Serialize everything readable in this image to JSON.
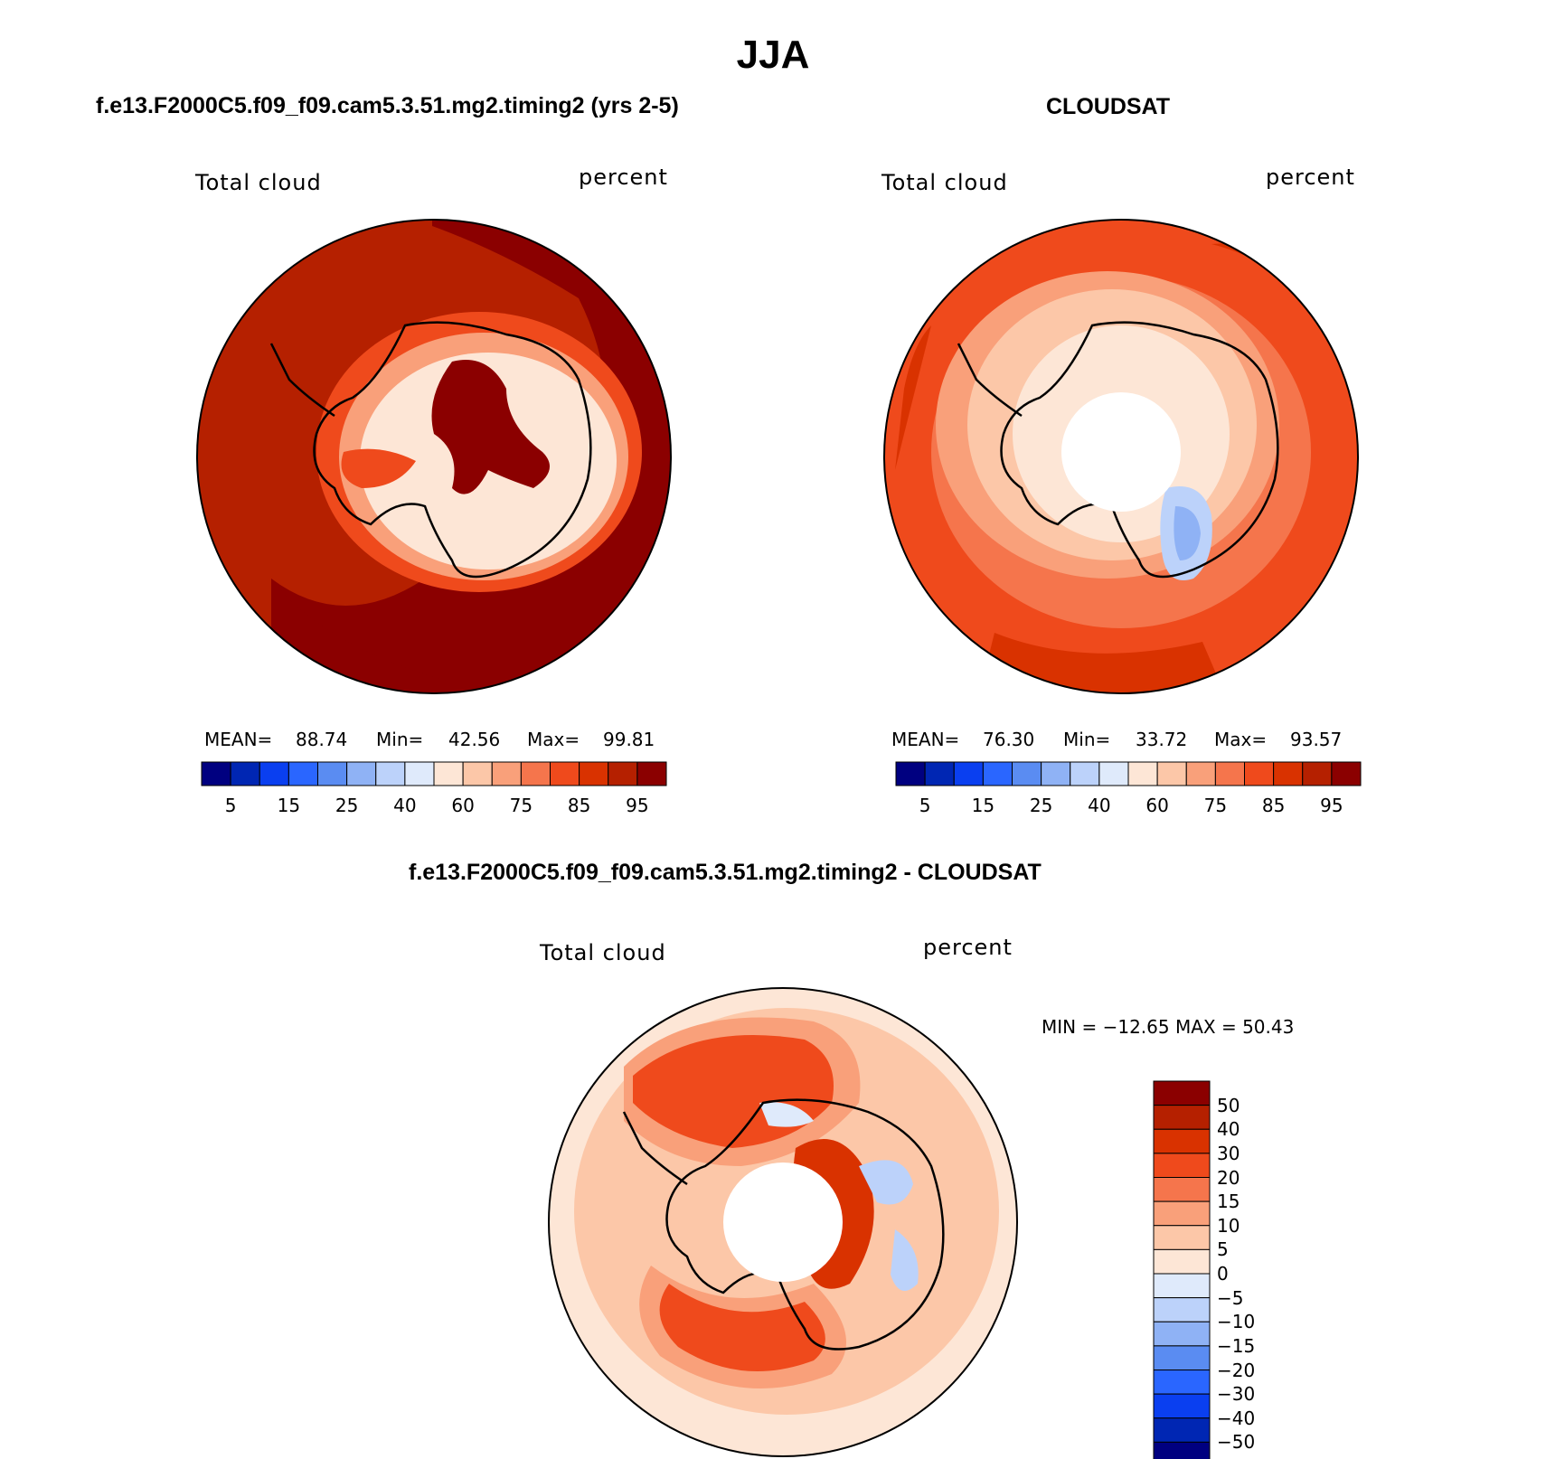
{
  "title": "JJA",
  "panels": [
    {
      "title": "f.e13.F2000C5.f09_f09.cam5.3.51.mg2.timing2 (yrs 2-5)",
      "left_label": "Total cloud",
      "right_label": "percent",
      "stats": {
        "mean_label": "MEAN=",
        "mean": "88.74",
        "min_label": "Min=",
        "min": "42.56",
        "max_label": "Max=",
        "max": "99.81"
      }
    },
    {
      "title": "CLOUDSAT",
      "left_label": "Total cloud",
      "right_label": "percent",
      "stats": {
        "mean_label": "MEAN=",
        "mean": "76.30",
        "min_label": "Min=",
        "min": "33.72",
        "max_label": "Max=",
        "max": "93.57"
      }
    },
    {
      "title": "f.e13.F2000C5.f09_f09.cam5.3.51.mg2.timing2 - CLOUDSAT",
      "left_label": "Total cloud",
      "right_label": "percent",
      "minmax_text": "MIN = −12.65 MAX =  50.43"
    }
  ],
  "chart_data": [
    {
      "type": "heatmap",
      "projection": "south-polar-stereographic",
      "variable": "Total cloud",
      "units": "percent",
      "season": "JJA",
      "stats": {
        "mean": 88.74,
        "min": 42.56,
        "max": 99.81
      },
      "colorbar": {
        "orientation": "horizontal",
        "tick_labels": [
          "5",
          "15",
          "25",
          "40",
          "60",
          "75",
          "85",
          "95"
        ],
        "colors": [
          "#000080",
          "#0026b3",
          "#0a3ff0",
          "#2a66ff",
          "#5a8cf2",
          "#8fb2f5",
          "#bcd2fa",
          "#dfeafb",
          "#fde6d6",
          "#fcc7a8",
          "#f9a07a",
          "#f5754c",
          "#ef4a1c",
          "#d93200",
          "#b52000",
          "#8b0000"
        ]
      }
    },
    {
      "type": "heatmap",
      "projection": "south-polar-stereographic",
      "variable": "Total cloud",
      "units": "percent",
      "season": "JJA",
      "stats": {
        "mean": 76.3,
        "min": 33.72,
        "max": 93.57
      },
      "colorbar": {
        "orientation": "horizontal",
        "tick_labels": [
          "5",
          "15",
          "25",
          "40",
          "60",
          "75",
          "85",
          "95"
        ],
        "colors": [
          "#000080",
          "#0026b3",
          "#0a3ff0",
          "#2a66ff",
          "#5a8cf2",
          "#8fb2f5",
          "#bcd2fa",
          "#dfeafb",
          "#fde6d6",
          "#fcc7a8",
          "#f9a07a",
          "#f5754c",
          "#ef4a1c",
          "#d93200",
          "#b52000",
          "#8b0000"
        ]
      }
    },
    {
      "type": "heatmap",
      "projection": "south-polar-stereographic",
      "variable": "Total cloud",
      "units": "percent",
      "season": "JJA",
      "stats": {
        "min": -12.65,
        "max": 50.43
      },
      "colorbar": {
        "orientation": "vertical",
        "tick_labels": [
          "50",
          "40",
          "30",
          "20",
          "15",
          "10",
          "5",
          "0",
          "−5",
          "−10",
          "−15",
          "−20",
          "−30",
          "−40",
          "−50"
        ],
        "colors": [
          "#8b0000",
          "#b52000",
          "#d93200",
          "#ef4a1c",
          "#f5754c",
          "#f9a07a",
          "#fcc7a8",
          "#fde6d6",
          "#dfeafb",
          "#bcd2fa",
          "#8fb2f5",
          "#5a8cf2",
          "#2a66ff",
          "#0a3ff0",
          "#0026b3",
          "#000080"
        ]
      }
    }
  ]
}
